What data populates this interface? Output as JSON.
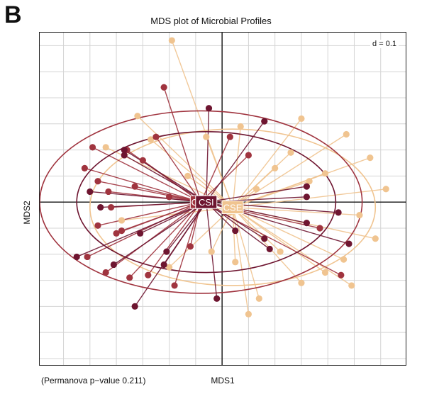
{
  "panel_letter": "B",
  "chart_data": {
    "type": "scatter",
    "title": "MDS plot of Microbial Profiles",
    "xlabel": "MDS1",
    "ylabel": "MDS2",
    "scale_label": "d = 0.1",
    "annotation": "(Permanova p−value 0.211)",
    "grid": true,
    "grid_spacing": 0.1,
    "xlim": [
      -0.69,
      0.7
    ],
    "ylim": [
      -0.63,
      0.65
    ],
    "series": [
      {
        "name": "CSH",
        "color": "#a0343f",
        "centroid": [
          -0.08,
          0.0
        ],
        "ellipse": {
          "rx": 0.61,
          "ry": 0.35,
          "angle": 0
        },
        "x": [
          -0.22,
          -0.49,
          -0.36,
          -0.43,
          -0.47,
          -0.33,
          -0.42,
          -0.51,
          -0.4,
          -0.44,
          -0.3,
          -0.52,
          -0.25,
          -0.38,
          -0.47,
          -0.18,
          -0.28,
          -0.12,
          -0.2,
          0.45,
          0.37,
          0.1,
          0.03,
          -0.35
        ],
        "y": [
          0.44,
          0.21,
          0.2,
          0.04,
          -0.09,
          0.06,
          -0.02,
          -0.21,
          -0.12,
          -0.27,
          0.16,
          0.13,
          0.25,
          -0.11,
          0.08,
          -0.32,
          -0.28,
          -0.17,
          0.02,
          -0.28,
          -0.1,
          0.18,
          0.25,
          -0.29
        ]
      },
      {
        "name": "CSI",
        "color": "#6e1530",
        "centroid": [
          -0.06,
          0.0
        ],
        "ellipse": {
          "rx": 0.49,
          "ry": 0.27,
          "angle": 0
        },
        "x": [
          -0.37,
          -0.55,
          -0.46,
          -0.41,
          -0.5,
          -0.31,
          -0.22,
          -0.33,
          0.16,
          0.32,
          0.44,
          0.48,
          -0.37,
          -0.05,
          -0.02,
          0.16,
          0.32,
          0.32,
          0.05,
          -0.21,
          0.18
        ],
        "y": [
          0.2,
          -0.21,
          -0.02,
          -0.24,
          0.04,
          -0.12,
          -0.24,
          -0.4,
          0.31,
          0.06,
          -0.04,
          -0.16,
          0.18,
          0.36,
          -0.37,
          -0.14,
          -0.08,
          0.02,
          -0.11,
          -0.19,
          -0.18
        ]
      },
      {
        "name": "CSE",
        "color": "#f0c490",
        "centroid": [
          0.04,
          -0.02
        ],
        "ellipse": {
          "rx": 0.54,
          "ry": 0.3,
          "angle": 0
        },
        "x": [
          -0.19,
          0.3,
          0.47,
          0.56,
          0.62,
          0.58,
          0.46,
          0.3,
          0.14,
          0.05,
          -0.04,
          -0.2,
          -0.32,
          -0.44,
          -0.38,
          0.26,
          0.39,
          0.07,
          0.2,
          -0.27,
          0.52,
          0.49,
          0.13,
          -0.06,
          0.1,
          0.22,
          -0.13,
          0.39,
          0.03,
          0.33
        ],
        "y": [
          0.62,
          0.32,
          0.26,
          0.17,
          0.05,
          -0.14,
          -0.22,
          -0.31,
          -0.37,
          -0.23,
          -0.19,
          -0.25,
          0.33,
          0.21,
          -0.07,
          0.19,
          0.11,
          0.29,
          0.13,
          0.24,
          -0.05,
          -0.32,
          0.05,
          0.25,
          -0.43,
          -0.19,
          0.1,
          -0.27,
          -0.04,
          0.08
        ]
      }
    ]
  }
}
